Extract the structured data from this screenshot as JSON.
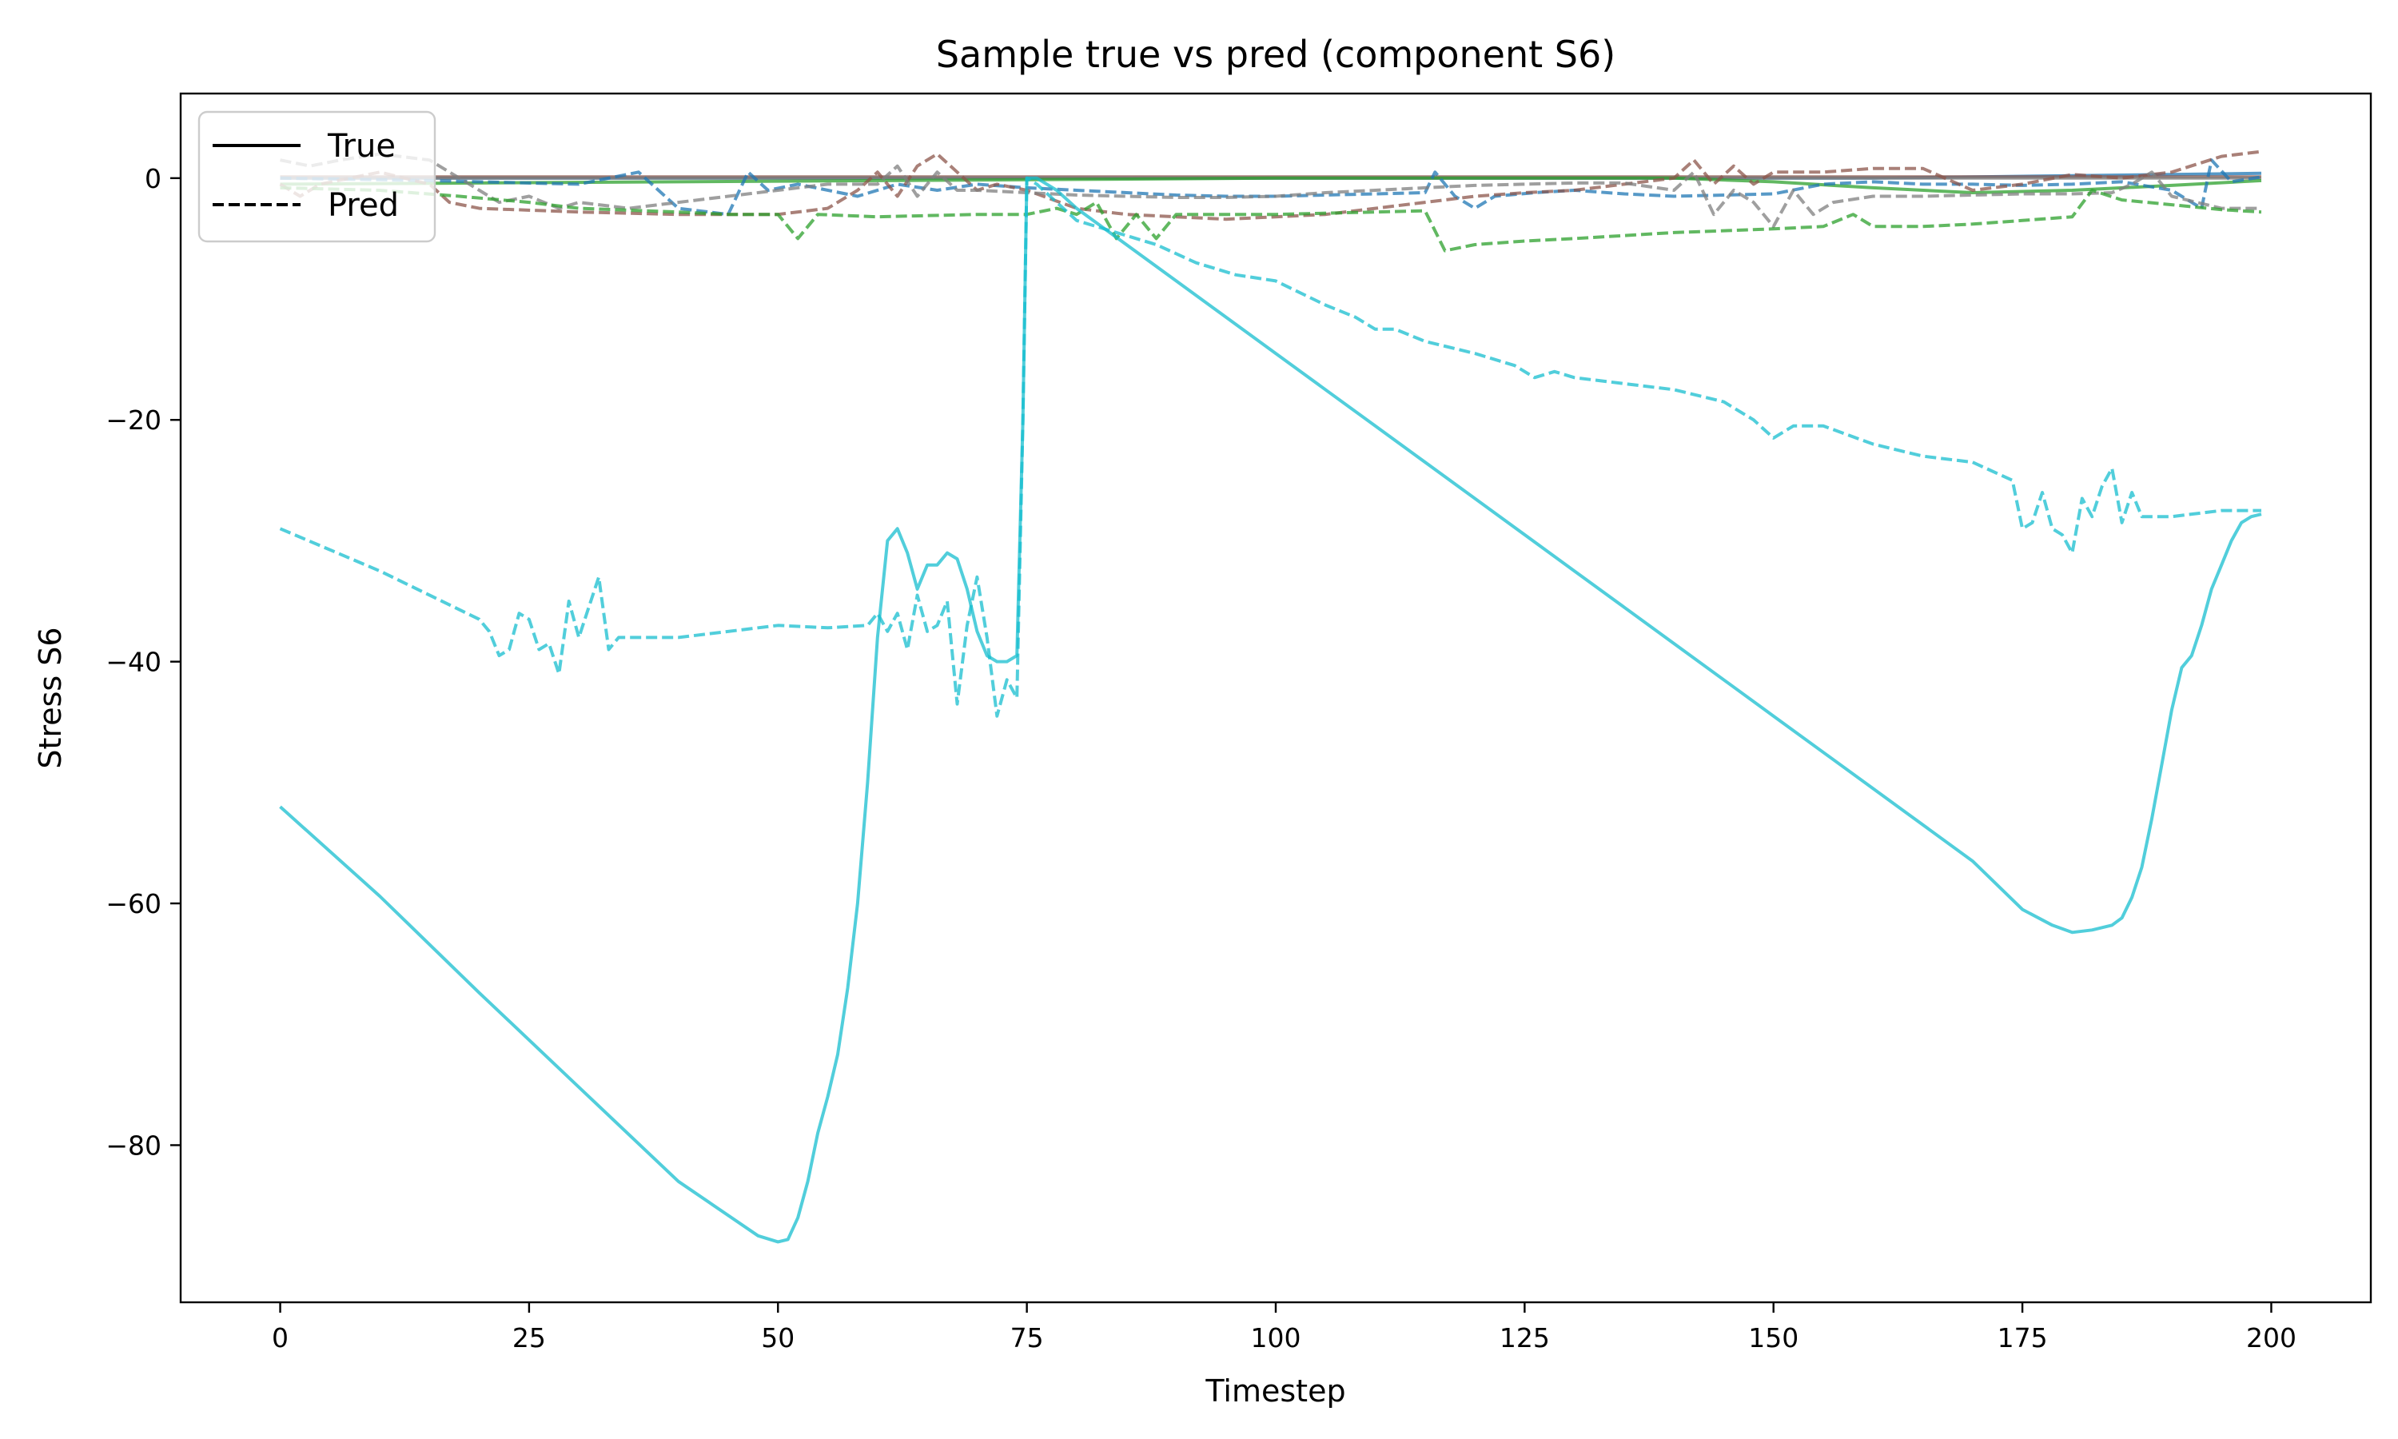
{
  "chart_data": {
    "type": "line",
    "title": "Sample true vs pred (component S6)",
    "xlabel": "Timestep",
    "ylabel": "Stress S6",
    "xlim": [
      -10,
      210
    ],
    "ylim": [
      -93,
      7
    ],
    "xticks": [
      0,
      25,
      50,
      75,
      100,
      125,
      150,
      175,
      200
    ],
    "xtick_labels": [
      "0",
      "25",
      "50",
      "75",
      "100",
      "125",
      "150",
      "175",
      "200"
    ],
    "yticks": [
      0,
      -20,
      -40,
      -60,
      -80
    ],
    "ytick_labels": [
      "0",
      "−20",
      "−40",
      "−60",
      "−80"
    ],
    "grid": false,
    "legend": {
      "placement": "top-left",
      "entries": [
        {
          "label": "True",
          "style": "solid",
          "color": "#000000"
        },
        {
          "label": "Pred",
          "style": "dashed",
          "color": "#000000"
        }
      ]
    },
    "series": [
      {
        "kind": "true",
        "color": "#1f77b4",
        "style": "solid",
        "opacity": 0.75,
        "x": [
          0,
          20,
          40,
          60,
          80,
          100,
          120,
          140,
          160,
          180,
          190,
          199
        ],
        "y": [
          0.0,
          0.0,
          0.0,
          0.0,
          0.0,
          0.0,
          0.0,
          0.0,
          0.0,
          0.2,
          0.3,
          0.4
        ]
      },
      {
        "kind": "true",
        "color": "#8c564b",
        "style": "solid",
        "opacity": 0.75,
        "x": [
          0,
          20,
          40,
          60,
          80,
          100,
          120,
          140,
          160,
          180,
          199
        ],
        "y": [
          0.1,
          0.1,
          0.1,
          0.1,
          0.1,
          0.1,
          0.1,
          0.1,
          0.1,
          0.1,
          0.1
        ]
      },
      {
        "kind": "true",
        "color": "#7f7f7f",
        "style": "solid",
        "opacity": 0.75,
        "x": [
          0,
          20,
          40,
          60,
          80,
          100,
          120,
          140,
          160,
          180,
          199
        ],
        "y": [
          0.0,
          0.0,
          0.0,
          0.0,
          0.0,
          0.0,
          0.0,
          0.0,
          0.0,
          0.0,
          0.0
        ]
      },
      {
        "kind": "true",
        "color": "#2ca02c",
        "style": "solid",
        "opacity": 0.75,
        "x": [
          0,
          20,
          40,
          60,
          80,
          100,
          120,
          140,
          150,
          160,
          170,
          180,
          190,
          199
        ],
        "y": [
          -0.5,
          -0.4,
          -0.3,
          -0.2,
          -0.1,
          0.0,
          0.0,
          0.0,
          -0.3,
          -0.8,
          -1.2,
          -1.0,
          -0.6,
          -0.2
        ]
      },
      {
        "kind": "pred",
        "color": "#1f77b4",
        "style": "dashed",
        "opacity": 0.75,
        "x": [
          0,
          15,
          30,
          36,
          38,
          40,
          45,
          47,
          49,
          52,
          58,
          62,
          66,
          70,
          75,
          80,
          85,
          90,
          95,
          100,
          105,
          110,
          115,
          116,
          118,
          120,
          122,
          126,
          130,
          135,
          140,
          145,
          150,
          155,
          160,
          165,
          170,
          175,
          180,
          185,
          190,
          193,
          194,
          196,
          199
        ],
        "y": [
          0.0,
          -0.2,
          -0.5,
          0.5,
          -1.0,
          -2.5,
          -3.0,
          0.5,
          -1.0,
          -0.5,
          -1.5,
          -0.5,
          -1.0,
          -0.5,
          -0.8,
          -1.0,
          -1.2,
          -1.4,
          -1.5,
          -1.5,
          -1.4,
          -1.3,
          -1.2,
          0.5,
          -1.5,
          -2.5,
          -1.5,
          -1.2,
          -1.0,
          -1.3,
          -1.5,
          -1.4,
          -1.3,
          -0.5,
          -0.3,
          -0.5,
          -0.5,
          -0.6,
          -0.5,
          -0.3,
          -1.0,
          -2.5,
          1.5,
          -0.3,
          0.1
        ]
      },
      {
        "kind": "pred",
        "color": "#8c564b",
        "style": "dashed",
        "opacity": 0.75,
        "x": [
          0,
          2,
          4,
          10,
          15,
          17,
          20,
          30,
          40,
          50,
          55,
          58,
          60,
          62,
          64,
          66,
          68,
          70,
          72,
          75,
          80,
          85,
          90,
          95,
          100,
          105,
          110,
          115,
          120,
          125,
          130,
          135,
          140,
          142,
          144,
          146,
          148,
          150,
          155,
          160,
          165,
          170,
          175,
          180,
          185,
          190,
          195,
          199
        ],
        "y": [
          -0.5,
          -1.5,
          -0.5,
          0.5,
          -0.5,
          -2.0,
          -2.5,
          -2.8,
          -3.0,
          -3.0,
          -2.5,
          -1.0,
          0.5,
          -1.5,
          1.0,
          2.0,
          0.5,
          -1.0,
          -0.5,
          -1.0,
          -2.5,
          -3.0,
          -3.2,
          -3.4,
          -3.2,
          -3.0,
          -2.5,
          -2.0,
          -1.5,
          -1.2,
          -1.0,
          -0.5,
          0.0,
          1.5,
          -0.5,
          1.0,
          -0.5,
          0.5,
          0.5,
          0.8,
          0.8,
          -1.0,
          -0.5,
          0.3,
          0.0,
          0.5,
          1.8,
          2.2
        ]
      },
      {
        "kind": "pred",
        "color": "#7f7f7f",
        "style": "dashed",
        "opacity": 0.75,
        "x": [
          0,
          3,
          6,
          10,
          15,
          18,
          20,
          22,
          25,
          28,
          30,
          35,
          40,
          45,
          50,
          55,
          60,
          62,
          64,
          66,
          68,
          70,
          75,
          80,
          85,
          90,
          95,
          100,
          105,
          110,
          115,
          120,
          125,
          130,
          135,
          140,
          142,
          144,
          146,
          148,
          150,
          152,
          154,
          156,
          160,
          165,
          170,
          175,
          180,
          184,
          186,
          188,
          190,
          195,
          199
        ],
        "y": [
          1.5,
          1.0,
          1.5,
          2.0,
          1.5,
          0.0,
          -1.0,
          -2.0,
          -1.5,
          -2.5,
          -2.0,
          -2.5,
          -2.0,
          -1.5,
          -1.0,
          -0.5,
          -0.5,
          1.0,
          -1.5,
          0.5,
          -1.0,
          -1.0,
          -1.2,
          -1.4,
          -1.5,
          -1.6,
          -1.6,
          -1.5,
          -1.2,
          -1.0,
          -0.8,
          -0.6,
          -0.5,
          -0.4,
          -0.4,
          -1.0,
          0.5,
          -3.0,
          -1.0,
          -2.0,
          -4.0,
          -1.0,
          -3.0,
          -2.0,
          -1.5,
          -1.5,
          -1.4,
          -1.3,
          -1.3,
          -1.2,
          -0.5,
          0.5,
          -1.5,
          -2.5,
          -2.5
        ]
      },
      {
        "kind": "pred",
        "color": "#2ca02c",
        "style": "dashed",
        "opacity": 0.75,
        "x": [
          0,
          10,
          18,
          25,
          30,
          40,
          45,
          50,
          52,
          54,
          60,
          70,
          75,
          78,
          80,
          82,
          84,
          86,
          88,
          90,
          100,
          110,
          115,
          117,
          120,
          125,
          130,
          140,
          150,
          155,
          158,
          160,
          165,
          170,
          175,
          180,
          182,
          185,
          190,
          195,
          199
        ],
        "y": [
          -0.8,
          -1.0,
          -1.5,
          -2.0,
          -2.5,
          -2.8,
          -3.0,
          -3.0,
          -5.0,
          -3.0,
          -3.2,
          -3.0,
          -3.0,
          -2.5,
          -3.0,
          -2.0,
          -5.0,
          -3.0,
          -5.0,
          -3.0,
          -3.0,
          -2.8,
          -2.7,
          -6.0,
          -5.5,
          -5.2,
          -5.0,
          -4.5,
          -4.2,
          -4.0,
          -3.0,
          -4.0,
          -4.0,
          -3.8,
          -3.5,
          -3.2,
          -1.0,
          -1.8,
          -2.2,
          -2.6,
          -2.8
        ]
      },
      {
        "kind": "true",
        "color": "#17becf",
        "style": "solid",
        "opacity": 0.75,
        "x": [
          0,
          10,
          20,
          30,
          40,
          48,
          50,
          51,
          52,
          53,
          54,
          55,
          56,
          57,
          58,
          59,
          60,
          61,
          62,
          63,
          64,
          65,
          66,
          67,
          68,
          69,
          70,
          71,
          72,
          73,
          74,
          74.6,
          75,
          76,
          78,
          80,
          90,
          100,
          110,
          120,
          130,
          140,
          150,
          160,
          170,
          175,
          178,
          180,
          182,
          184,
          185,
          186,
          187,
          188,
          189,
          190,
          191,
          192,
          193,
          194,
          195,
          196,
          197,
          198,
          199
        ],
        "y": [
          -52.0,
          -59.4,
          -67.4,
          -75.2,
          -83.0,
          -87.5,
          -88.0,
          -87.8,
          -86.0,
          -83.0,
          -79.0,
          -76.0,
          -72.5,
          -67.0,
          -60.0,
          -50.0,
          -38.0,
          -30.0,
          -29.0,
          -31.0,
          -34.0,
          -32.0,
          -32.0,
          -31.0,
          -31.5,
          -34.0,
          -37.5,
          -39.5,
          -40.0,
          -40.0,
          -39.5,
          -20.0,
          0.0,
          0.0,
          -1.0,
          -2.5,
          -8.5,
          -14.5,
          -20.5,
          -26.5,
          -32.5,
          -38.5,
          -44.5,
          -50.5,
          -56.5,
          -60.5,
          -61.8,
          -62.4,
          -62.2,
          -61.8,
          -61.2,
          -59.5,
          -57.0,
          -53.0,
          -48.5,
          -44.0,
          -40.5,
          -39.5,
          -37.0,
          -34.0,
          -32.0,
          -30.0,
          -28.5,
          -28.0,
          -27.8
        ]
      },
      {
        "kind": "pred",
        "color": "#17becf",
        "style": "dashed",
        "opacity": 0.75,
        "x": [
          0,
          10,
          20,
          21,
          22,
          23,
          24,
          25,
          26,
          27,
          28,
          29,
          30,
          31,
          32,
          33,
          34,
          40,
          50,
          55,
          59,
          60,
          61,
          62,
          63,
          64,
          65,
          66,
          67,
          68,
          69,
          70,
          71,
          72,
          73,
          74,
          74.6,
          75,
          76,
          78,
          80,
          84,
          88,
          92,
          96,
          100,
          105,
          108,
          110,
          112,
          115,
          120,
          124,
          126,
          128,
          130,
          135,
          140,
          145,
          148,
          150,
          152,
          155,
          160,
          165,
          170,
          174,
          175,
          176,
          177,
          178,
          179,
          180,
          181,
          182,
          183,
          184,
          185,
          186,
          187,
          188,
          190,
          195,
          199
        ],
        "y": [
          -29.0,
          -32.5,
          -36.5,
          -37.5,
          -39.5,
          -39.0,
          -36.0,
          -36.5,
          -39.0,
          -38.5,
          -41.0,
          -35.0,
          -38.0,
          -35.5,
          -33.0,
          -39.0,
          -38.0,
          -38.0,
          -37.0,
          -37.2,
          -37.0,
          -36.0,
          -37.5,
          -36.0,
          -39.0,
          -34.5,
          -37.5,
          -37.0,
          -35.0,
          -43.5,
          -37.0,
          -33.0,
          -38.0,
          -44.5,
          -41.5,
          -43.0,
          -20.0,
          0.0,
          -0.5,
          -2.0,
          -3.5,
          -4.5,
          -5.5,
          -7.0,
          -8.0,
          -8.5,
          -10.5,
          -11.5,
          -12.5,
          -12.5,
          -13.5,
          -14.5,
          -15.5,
          -16.5,
          -16.0,
          -16.5,
          -17.0,
          -17.5,
          -18.5,
          -20.0,
          -21.5,
          -20.5,
          -20.5,
          -22.0,
          -23.0,
          -23.5,
          -25.0,
          -29.0,
          -28.5,
          -26.0,
          -29.0,
          -29.5,
          -31.0,
          -26.5,
          -28.0,
          -25.5,
          -24.0,
          -28.5,
          -26.0,
          -28.0,
          -28.0,
          -28.0,
          -27.5,
          -27.5
        ]
      }
    ]
  }
}
